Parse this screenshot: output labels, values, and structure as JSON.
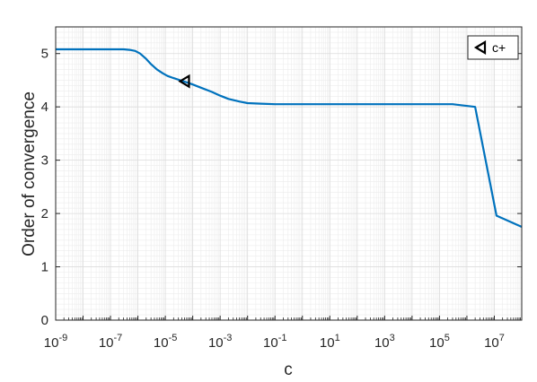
{
  "chart_data": {
    "type": "line",
    "xlabel": "c",
    "ylabel": "Order of convergence",
    "x_scale": "log",
    "xlim": [
      1e-09,
      100000000.0
    ],
    "ylim": [
      0,
      5.5
    ],
    "grid": true,
    "minor_grid": true,
    "legend_position": "top-right",
    "x_ticks": [
      {
        "base": "10",
        "exp": "-9",
        "value": 1e-09
      },
      {
        "base": "10",
        "exp": "-7",
        "value": 1e-07
      },
      {
        "base": "10",
        "exp": "-5",
        "value": 1e-05
      },
      {
        "base": "10",
        "exp": "-3",
        "value": 0.001
      },
      {
        "base": "10",
        "exp": "-1",
        "value": 0.1
      },
      {
        "base": "10",
        "exp": "1",
        "value": 10
      },
      {
        "base": "10",
        "exp": "3",
        "value": 1000
      },
      {
        "base": "10",
        "exp": "5",
        "value": 100000
      },
      {
        "base": "10",
        "exp": "7",
        "value": 10000000
      }
    ],
    "y_ticks": [
      "0",
      "1",
      "2",
      "3",
      "4",
      "5"
    ],
    "series": [
      {
        "color": "#0072BD",
        "x": [
          1e-09,
          1e-08,
          1e-07,
          3e-07,
          5e-07,
          8e-07,
          1.2e-06,
          2e-06,
          3e-06,
          5e-06,
          8e-06,
          1.2e-05,
          2e-05,
          3.5e-05,
          6e-05,
          0.0001,
          0.0002,
          0.0005,
          0.001,
          0.002,
          0.005,
          0.01,
          0.03,
          0.1,
          1,
          10,
          100,
          1000,
          10000,
          100000,
          300000,
          2000000,
          12000000,
          100000000
        ],
        "y": [
          5.08,
          5.08,
          5.08,
          5.08,
          5.07,
          5.05,
          5.0,
          4.9,
          4.8,
          4.7,
          4.63,
          4.58,
          4.54,
          4.5,
          4.46,
          4.42,
          4.36,
          4.28,
          4.21,
          4.15,
          4.1,
          4.07,
          4.06,
          4.05,
          4.05,
          4.05,
          4.05,
          4.05,
          4.05,
          4.05,
          4.05,
          4.0,
          1.96,
          1.75
        ]
      }
    ],
    "marker": {
      "label": "c+",
      "x": 5e-05,
      "y": 4.48,
      "symbol": "triangle-left"
    }
  }
}
